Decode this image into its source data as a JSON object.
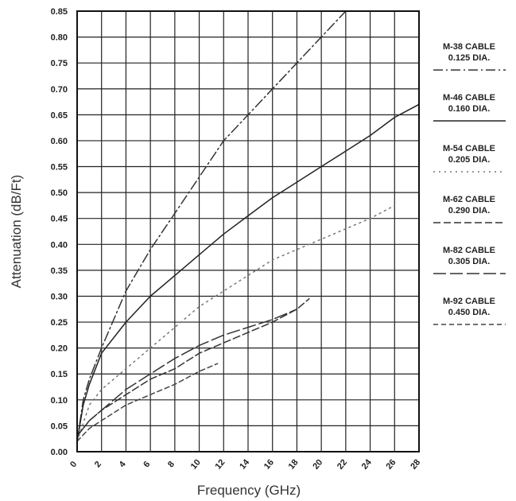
{
  "chart_data": {
    "type": "line",
    "xlabel": "Frequency (GHz)",
    "ylabel": "Attenuation (dB/Ft)",
    "xlim": [
      0,
      28
    ],
    "ylim": [
      0,
      0.85
    ],
    "x_ticks": [
      "0",
      "2",
      "4",
      "6",
      "8",
      "10",
      "12",
      "14",
      "16",
      "18",
      "20",
      "22",
      "24",
      "26",
      "28"
    ],
    "y_ticks": [
      "0.00",
      "0.05",
      "0.10",
      "0.15",
      "0.20",
      "0.25",
      "0.30",
      "0.35",
      "0.40",
      "0.45",
      "0.50",
      "0.55",
      "0.60",
      "0.65",
      "0.70",
      "0.75",
      "0.80",
      "0.85"
    ],
    "grid": true,
    "legend_position": "right",
    "series": [
      {
        "name": "M-38 CABLE",
        "label_line2": "0.125 DIA.",
        "dash": "dashdot",
        "color": "#333333",
        "x": [
          0,
          0.5,
          1,
          2,
          4,
          6,
          8,
          10,
          12,
          14,
          16,
          18,
          20,
          22
        ],
        "y": [
          0.02,
          0.1,
          0.14,
          0.2,
          0.31,
          0.39,
          0.46,
          0.53,
          0.6,
          0.65,
          0.7,
          0.75,
          0.8,
          0.85
        ]
      },
      {
        "name": "M-46 CABLE",
        "label_line2": "0.160 DIA.",
        "dash": "solid",
        "color": "#222222",
        "x": [
          0,
          0.5,
          1,
          2,
          4,
          6,
          8,
          10,
          12,
          14,
          16,
          18,
          20,
          22,
          24,
          26,
          28
        ],
        "y": [
          0.02,
          0.09,
          0.13,
          0.19,
          0.25,
          0.3,
          0.34,
          0.38,
          0.42,
          0.455,
          0.49,
          0.52,
          0.55,
          0.58,
          0.61,
          0.645,
          0.67
        ]
      },
      {
        "name": "M-54 CABLE",
        "label_line2": "0.205 DIA.",
        "dash": "dotted",
        "color": "#777777",
        "x": [
          0,
          1,
          2,
          4,
          6,
          8,
          10,
          12,
          14,
          16,
          18,
          20,
          22,
          24,
          26
        ],
        "y": [
          0.02,
          0.09,
          0.12,
          0.16,
          0.2,
          0.24,
          0.28,
          0.31,
          0.34,
          0.37,
          0.39,
          0.41,
          0.43,
          0.45,
          0.475
        ]
      },
      {
        "name": "M-62 CABLE",
        "label_line2": "0.290 DIA.",
        "dash": "dashed",
        "color": "#333333",
        "x": [
          0,
          1,
          2,
          4,
          6,
          8,
          10,
          12,
          14,
          16,
          18,
          19
        ],
        "y": [
          0.03,
          0.06,
          0.08,
          0.11,
          0.14,
          0.16,
          0.19,
          0.21,
          0.23,
          0.25,
          0.275,
          0.295
        ]
      },
      {
        "name": "M-82 CABLE",
        "label_line2": "0.305 DIA.",
        "dash": "longdash",
        "color": "#333333",
        "x": [
          0,
          1,
          2,
          4,
          6,
          8,
          10,
          12,
          14,
          16,
          18
        ],
        "y": [
          0.03,
          0.06,
          0.08,
          0.12,
          0.15,
          0.18,
          0.205,
          0.225,
          0.24,
          0.255,
          0.275
        ]
      },
      {
        "name": "M-92 CABLE",
        "label_line2": "0.450 DIA.",
        "dash": "shortdash",
        "color": "#444444",
        "x": [
          0,
          1,
          2,
          4,
          6,
          8,
          10,
          11.5
        ],
        "y": [
          0.02,
          0.045,
          0.06,
          0.09,
          0.11,
          0.13,
          0.155,
          0.17
        ]
      }
    ]
  }
}
